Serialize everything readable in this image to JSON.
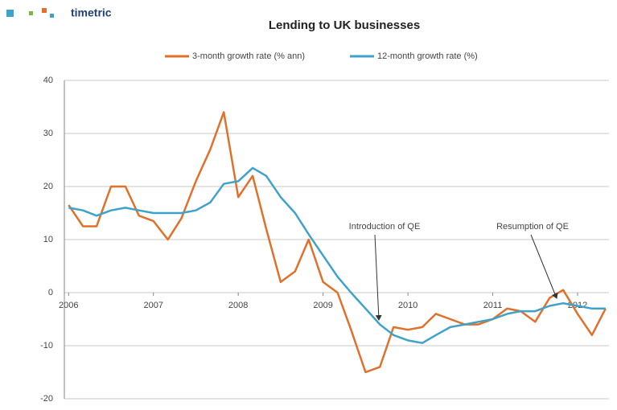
{
  "logo": "timetric",
  "chart_data": {
    "type": "line",
    "title": "Lending to UK businesses",
    "x": [
      2006.0,
      2006.17,
      2006.33,
      2006.5,
      2006.67,
      2006.83,
      2007.0,
      2007.17,
      2007.33,
      2007.5,
      2007.67,
      2007.83,
      2008.0,
      2008.17,
      2008.33,
      2008.5,
      2008.67,
      2008.83,
      2009.0,
      2009.17,
      2009.33,
      2009.5,
      2009.67,
      2009.83,
      2010.0,
      2010.17,
      2010.33,
      2010.5,
      2010.67,
      2010.83,
      2011.0,
      2011.17,
      2011.33,
      2011.5,
      2011.67,
      2011.83,
      2012.0,
      2012.17,
      2012.33
    ],
    "series": [
      {
        "name": "3-month growth rate (% ann)",
        "color": "#e0702a",
        "values": [
          16.5,
          12.5,
          12.5,
          20,
          20,
          14.5,
          13.5,
          10,
          14,
          21,
          27,
          34,
          18,
          22,
          12,
          2,
          4,
          10,
          2,
          0,
          -7,
          -15,
          -14,
          -6.5,
          -7,
          -6.5,
          -4,
          -5,
          -6,
          -6,
          -5,
          -3,
          -3.5,
          -5.5,
          -1,
          0.5,
          -4,
          -8,
          -3
        ]
      },
      {
        "name": "12-month growth rate (%)",
        "color": "#3fa2c9",
        "values": [
          16,
          15.5,
          14.5,
          15.5,
          16,
          15.5,
          15,
          15,
          15,
          15.5,
          17,
          20.5,
          21,
          23.5,
          22,
          18,
          15,
          11,
          7,
          3,
          0,
          -3,
          -6,
          -8,
          -9,
          -9.5,
          -8,
          -6.5,
          -6,
          -5.5,
          -5,
          -4,
          -3.5,
          -3.5,
          -2.5,
          -2,
          -2.5,
          -3,
          -3
        ]
      }
    ],
    "xlim": [
      2005.95,
      2012.37
    ],
    "xticks": [
      2006,
      2007,
      2008,
      2009,
      2010,
      2011,
      2012
    ],
    "ylim": [
      -20,
      40
    ],
    "yticks": [
      -20,
      -10,
      0,
      10,
      20,
      30,
      40
    ],
    "grid": true,
    "legend": "top",
    "annotations": [
      "Introduction of QE",
      "Resumption of QE"
    ]
  }
}
